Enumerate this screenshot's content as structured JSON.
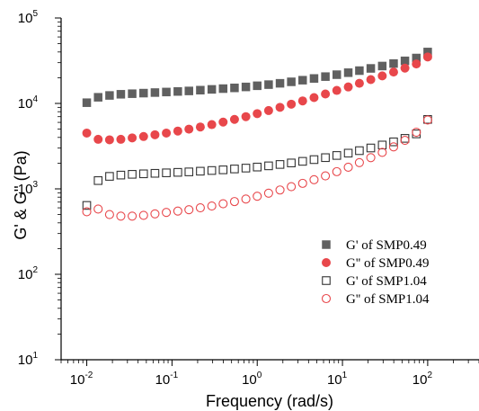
{
  "chart_data": {
    "type": "scatter",
    "xlabel": "Frequency (rad/s)",
    "ylabel": "G' & G'' (Pa)",
    "xscale": "log",
    "yscale": "log",
    "xlim": [
      0.005,
      400
    ],
    "ylim": [
      10,
      100000
    ],
    "x_ticks": [
      {
        "base": "10",
        "exp": "-2"
      },
      {
        "base": "10",
        "exp": "-1"
      },
      {
        "base": "10",
        "exp": "0"
      },
      {
        "base": "10",
        "exp": "1"
      },
      {
        "base": "10",
        "exp": "2"
      }
    ],
    "y_ticks": [
      {
        "base": "10",
        "exp": "1"
      },
      {
        "base": "10",
        "exp": "2"
      },
      {
        "base": "10",
        "exp": "3"
      },
      {
        "base": "10",
        "exp": "4"
      },
      {
        "base": "10",
        "exp": "5"
      }
    ],
    "legend_position": "lower-right",
    "series": [
      {
        "name": "G' of SMP0.49",
        "marker": "square-filled",
        "color": "#606060",
        "x": [
          0.01,
          0.0136,
          0.0185,
          0.0251,
          0.0341,
          0.0464,
          0.0631,
          0.0858,
          0.117,
          0.158,
          0.215,
          0.293,
          0.398,
          0.541,
          0.736,
          1,
          1.36,
          1.85,
          2.51,
          3.41,
          4.64,
          6.31,
          8.58,
          11.7,
          15.8,
          21.5,
          29.3,
          39.8,
          54.1,
          73.6,
          100
        ],
        "y": [
          10200,
          11800,
          12400,
          12800,
          13000,
          13200,
          13400,
          13600,
          13800,
          14000,
          14300,
          14600,
          14900,
          15200,
          15600,
          16100,
          16600,
          17200,
          17900,
          18700,
          19600,
          20600,
          21700,
          22900,
          24200,
          25700,
          27400,
          29300,
          31500,
          34000,
          40000
        ]
      },
      {
        "name": "G'' of SMP0.49",
        "marker": "circle-filled",
        "color": "#e8474b",
        "x": [
          0.01,
          0.0136,
          0.0185,
          0.0251,
          0.0341,
          0.0464,
          0.0631,
          0.0858,
          0.117,
          0.158,
          0.215,
          0.293,
          0.398,
          0.541,
          0.736,
          1,
          1.36,
          1.85,
          2.51,
          3.41,
          4.64,
          6.31,
          8.58,
          11.7,
          15.8,
          21.5,
          29.3,
          39.8,
          54.1,
          73.6,
          100
        ],
        "y": [
          4500,
          3800,
          3750,
          3800,
          3950,
          4100,
          4300,
          4500,
          4750,
          5000,
          5300,
          5650,
          6050,
          6500,
          7000,
          7600,
          8250,
          9000,
          9800,
          10700,
          11700,
          12900,
          14200,
          15600,
          17200,
          19000,
          21000,
          23300,
          25900,
          29000,
          35000
        ]
      },
      {
        "name": "G' of SMP1.04",
        "marker": "square-open",
        "color": "#333333",
        "x": [
          0.01,
          0.0136,
          0.0185,
          0.0251,
          0.0341,
          0.0464,
          0.0631,
          0.0858,
          0.117,
          0.158,
          0.215,
          0.293,
          0.398,
          0.541,
          0.736,
          1,
          1.36,
          1.85,
          2.51,
          3.41,
          4.64,
          6.31,
          8.58,
          11.7,
          15.8,
          21.5,
          29.3,
          39.8,
          54.1,
          73.6,
          100
        ],
        "y": [
          640,
          1250,
          1400,
          1450,
          1480,
          1500,
          1520,
          1540,
          1560,
          1580,
          1610,
          1640,
          1670,
          1710,
          1750,
          1800,
          1860,
          1930,
          2010,
          2100,
          2200,
          2320,
          2460,
          2620,
          2800,
          3010,
          3260,
          3550,
          3900,
          4400,
          6500
        ]
      },
      {
        "name": "G'' of SMP1.04",
        "marker": "circle-open",
        "color": "#e8474b",
        "x": [
          0.01,
          0.0136,
          0.0185,
          0.0251,
          0.0341,
          0.0464,
          0.0631,
          0.0858,
          0.117,
          0.158,
          0.215,
          0.293,
          0.398,
          0.541,
          0.736,
          1,
          1.36,
          1.85,
          2.51,
          3.41,
          4.64,
          6.31,
          8.58,
          11.7,
          15.8,
          21.5,
          29.3,
          39.8,
          54.1,
          73.6,
          100
        ],
        "y": [
          540,
          580,
          500,
          480,
          480,
          490,
          510,
          530,
          550,
          570,
          600,
          630,
          670,
          710,
          760,
          820,
          890,
          970,
          1060,
          1160,
          1280,
          1420,
          1590,
          1790,
          2030,
          2320,
          2670,
          3100,
          3700,
          4600,
          6400
        ]
      }
    ]
  }
}
